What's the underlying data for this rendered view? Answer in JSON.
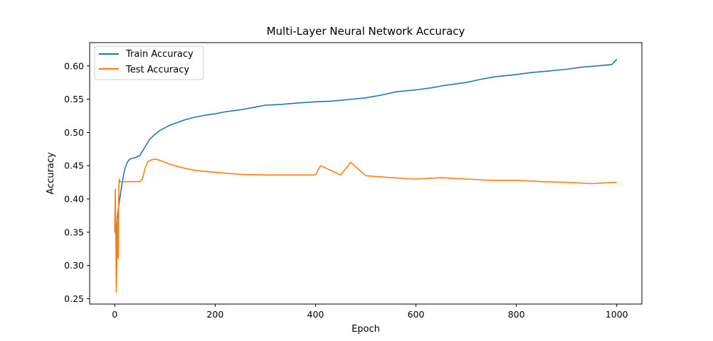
{
  "chart_data": {
    "type": "line",
    "title": "Multi-Layer Neural Network Accuracy",
    "xlabel": "Epoch",
    "ylabel": "Accuracy",
    "xlim": [
      -50,
      1050
    ],
    "ylim": [
      0.242,
      0.635
    ],
    "xticks": [
      0,
      200,
      400,
      600,
      800,
      1000
    ],
    "yticks": [
      0.25,
      0.3,
      0.35,
      0.4,
      0.45,
      0.5,
      0.55,
      0.6
    ],
    "ytick_labels": [
      "0.25",
      "0.30",
      "0.35",
      "0.40",
      "0.45",
      "0.50",
      "0.55",
      "0.60"
    ],
    "grid": false,
    "legend_position": "top-left",
    "series": [
      {
        "name": "Train Accuracy",
        "color": "#1f77b4",
        "x": [
          0,
          3,
          5,
          8,
          12,
          16,
          20,
          25,
          30,
          40,
          50,
          60,
          70,
          80,
          90,
          100,
          110,
          125,
          140,
          160,
          180,
          200,
          220,
          250,
          280,
          300,
          330,
          360,
          400,
          430,
          460,
          500,
          530,
          560,
          600,
          630,
          660,
          700,
          730,
          760,
          800,
          830,
          860,
          900,
          930,
          960,
          990,
          1000
        ],
        "values": [
          0.36,
          0.34,
          0.37,
          0.39,
          0.41,
          0.43,
          0.445,
          0.455,
          0.46,
          0.462,
          0.465,
          0.478,
          0.49,
          0.497,
          0.503,
          0.507,
          0.511,
          0.515,
          0.519,
          0.523,
          0.526,
          0.528,
          0.531,
          0.534,
          0.538,
          0.541,
          0.542,
          0.544,
          0.546,
          0.547,
          0.549,
          0.552,
          0.556,
          0.561,
          0.564,
          0.567,
          0.571,
          0.575,
          0.58,
          0.584,
          0.587,
          0.59,
          0.592,
          0.595,
          0.598,
          0.6,
          0.602,
          0.61
        ]
      },
      {
        "name": "Test Accuracy",
        "color": "#ff7f0e",
        "x": [
          0,
          1,
          2,
          3,
          4,
          5,
          6,
          7,
          8,
          9,
          10,
          12,
          15,
          20,
          30,
          40,
          50,
          55,
          60,
          65,
          70,
          80,
          90,
          100,
          110,
          120,
          140,
          160,
          200,
          250,
          300,
          350,
          400,
          410,
          450,
          470,
          500,
          550,
          600,
          650,
          700,
          750,
          800,
          850,
          900,
          950,
          1000
        ],
        "values": [
          0.35,
          0.415,
          0.36,
          0.26,
          0.3,
          0.37,
          0.32,
          0.31,
          0.415,
          0.43,
          0.425,
          0.426,
          0.426,
          0.426,
          0.426,
          0.426,
          0.426,
          0.43,
          0.445,
          0.455,
          0.458,
          0.46,
          0.458,
          0.455,
          0.452,
          0.45,
          0.446,
          0.443,
          0.44,
          0.437,
          0.436,
          0.436,
          0.436,
          0.45,
          0.436,
          0.455,
          0.435,
          0.432,
          0.43,
          0.432,
          0.43,
          0.428,
          0.428,
          0.426,
          0.425,
          0.423,
          0.425
        ]
      }
    ]
  }
}
